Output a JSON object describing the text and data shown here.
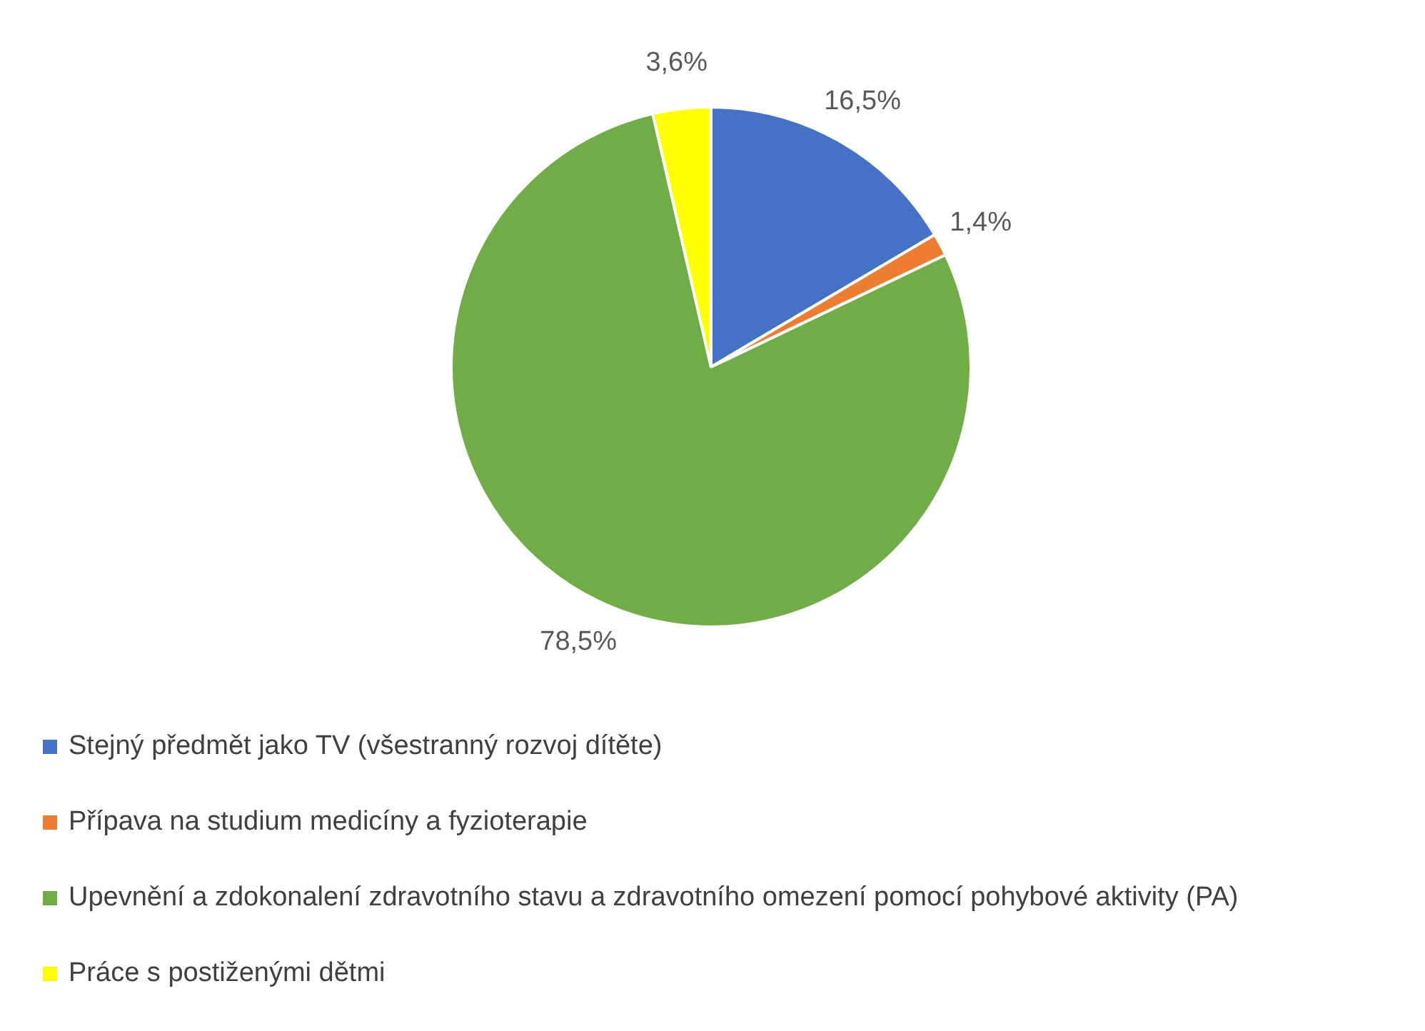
{
  "chart_data": {
    "type": "pie",
    "categories": [
      "Stejný předmět jako TV (všestranný rozvoj dítěte)",
      "Přípava na studium medicíny a fyzioterapie",
      "Upevnění a zdokonalení zdravotního stavu a zdravotního omezení pomocí pohybové aktivity (PA)",
      "Práce s postiženými dětmi"
    ],
    "values": [
      16.5,
      1.4,
      78.5,
      3.6
    ],
    "colors": [
      "#4472c4",
      "#ed7d31",
      "#70ad47",
      "#ffff00"
    ],
    "value_labels": [
      "16,5%",
      "1,4%",
      "78,5%",
      "3,6%"
    ],
    "legend": "bottom"
  }
}
